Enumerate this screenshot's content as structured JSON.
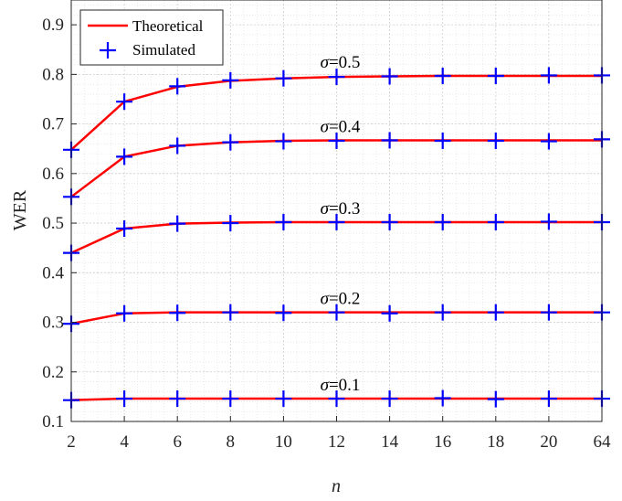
{
  "chart_data": {
    "type": "line",
    "xlabel": "n",
    "ylabel": "WER",
    "categories": [
      "2",
      "4",
      "6",
      "8",
      "10",
      "12",
      "14",
      "16",
      "18",
      "20",
      "64"
    ],
    "ylim": [
      0.1,
      0.95
    ],
    "yticks": [
      "0.1",
      "0.2",
      "0.3",
      "0.4",
      "0.5",
      "0.6",
      "0.7",
      "0.8",
      "0.9"
    ],
    "grid": true,
    "legend": {
      "position": "top-left",
      "entries": [
        "Theoretical",
        "Simulated"
      ]
    },
    "series": [
      {
        "name": "Theoretical",
        "group": "σ=0.5",
        "values": [
          0.648,
          0.745,
          0.775,
          0.787,
          0.792,
          0.795,
          0.796,
          0.797,
          0.797,
          0.797,
          0.797
        ]
      },
      {
        "name": "Simulated",
        "group": "σ=0.5",
        "values": [
          0.648,
          0.745,
          0.776,
          0.788,
          0.792,
          0.795,
          0.796,
          0.797,
          0.797,
          0.798,
          0.798
        ]
      },
      {
        "name": "Theoretical",
        "group": "σ=0.4",
        "values": [
          0.553,
          0.634,
          0.656,
          0.663,
          0.666,
          0.667,
          0.667,
          0.667,
          0.667,
          0.667,
          0.667
        ]
      },
      {
        "name": "Simulated",
        "group": "σ=0.4",
        "values": [
          0.553,
          0.634,
          0.656,
          0.663,
          0.665,
          0.666,
          0.667,
          0.666,
          0.666,
          0.665,
          0.669
        ]
      },
      {
        "name": "Theoretical",
        "group": "σ=0.3",
        "values": [
          0.44,
          0.489,
          0.499,
          0.501,
          0.502,
          0.502,
          0.502,
          0.502,
          0.502,
          0.502,
          0.502
        ]
      },
      {
        "name": "Simulated",
        "group": "σ=0.3",
        "values": [
          0.44,
          0.489,
          0.499,
          0.5,
          0.502,
          0.502,
          0.502,
          0.502,
          0.502,
          0.503,
          0.502
        ]
      },
      {
        "name": "Theoretical",
        "group": "σ=0.2",
        "values": [
          0.297,
          0.318,
          0.32,
          0.32,
          0.32,
          0.32,
          0.32,
          0.32,
          0.32,
          0.32,
          0.32
        ]
      },
      {
        "name": "Simulated",
        "group": "σ=0.2",
        "values": [
          0.297,
          0.318,
          0.319,
          0.32,
          0.319,
          0.32,
          0.318,
          0.32,
          0.32,
          0.32,
          0.32
        ]
      },
      {
        "name": "Theoretical",
        "group": "σ=0.1",
        "values": [
          0.143,
          0.146,
          0.146,
          0.146,
          0.146,
          0.146,
          0.146,
          0.146,
          0.146,
          0.146,
          0.146
        ]
      },
      {
        "name": "Simulated",
        "group": "σ=0.1",
        "values": [
          0.143,
          0.146,
          0.146,
          0.146,
          0.146,
          0.146,
          0.146,
          0.147,
          0.145,
          0.146,
          0.146
        ]
      }
    ],
    "annotations": [
      {
        "text": "σ=0.5",
        "x": "12",
        "y": 0.797
      },
      {
        "text": "σ=0.4",
        "x": "12",
        "y": 0.667
      },
      {
        "text": "σ=0.3",
        "x": "12",
        "y": 0.502
      },
      {
        "text": "σ=0.2",
        "x": "12",
        "y": 0.32
      },
      {
        "text": "σ=0.1",
        "x": "12",
        "y": 0.146
      }
    ]
  },
  "colors": {
    "theoretical": "#ff0000",
    "simulated": "#0000ff",
    "grid": "#dcdcdc",
    "axis": "#262626"
  }
}
